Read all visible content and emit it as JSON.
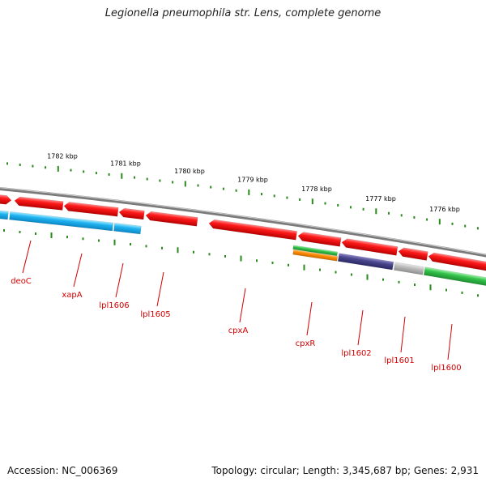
{
  "title": "Legionella pneumophila str. Lens, complete genome",
  "footer": {
    "accession": "Accession: NC_006369",
    "summary": "Topology: circular; Length: 3,345,687 bp; Genes: 2,931"
  },
  "scale_labels": [
    "1782 kbp",
    "1781 kbp",
    "1780 kbp",
    "1779 kbp",
    "1778 kbp",
    "1777 kbp",
    "1776 kbp"
  ],
  "gene_labels": [
    "deoC",
    "xapA",
    "lpl1606",
    "lpl1605",
    "cpxA",
    "cpxR",
    "lpl1602",
    "lpl1601",
    "lpl1600"
  ],
  "colors": {
    "forward_gene": "#e60000",
    "backbone": "#7a7a7a",
    "cyan_feature": "#1fb3f0",
    "green_feature": "#33c24a",
    "orange_feature": "#ff8a00",
    "purple_feature": "#4a468c",
    "gray_feature": "#b9b9b9",
    "tick": "#2a8a1c",
    "label": "#d40000"
  }
}
